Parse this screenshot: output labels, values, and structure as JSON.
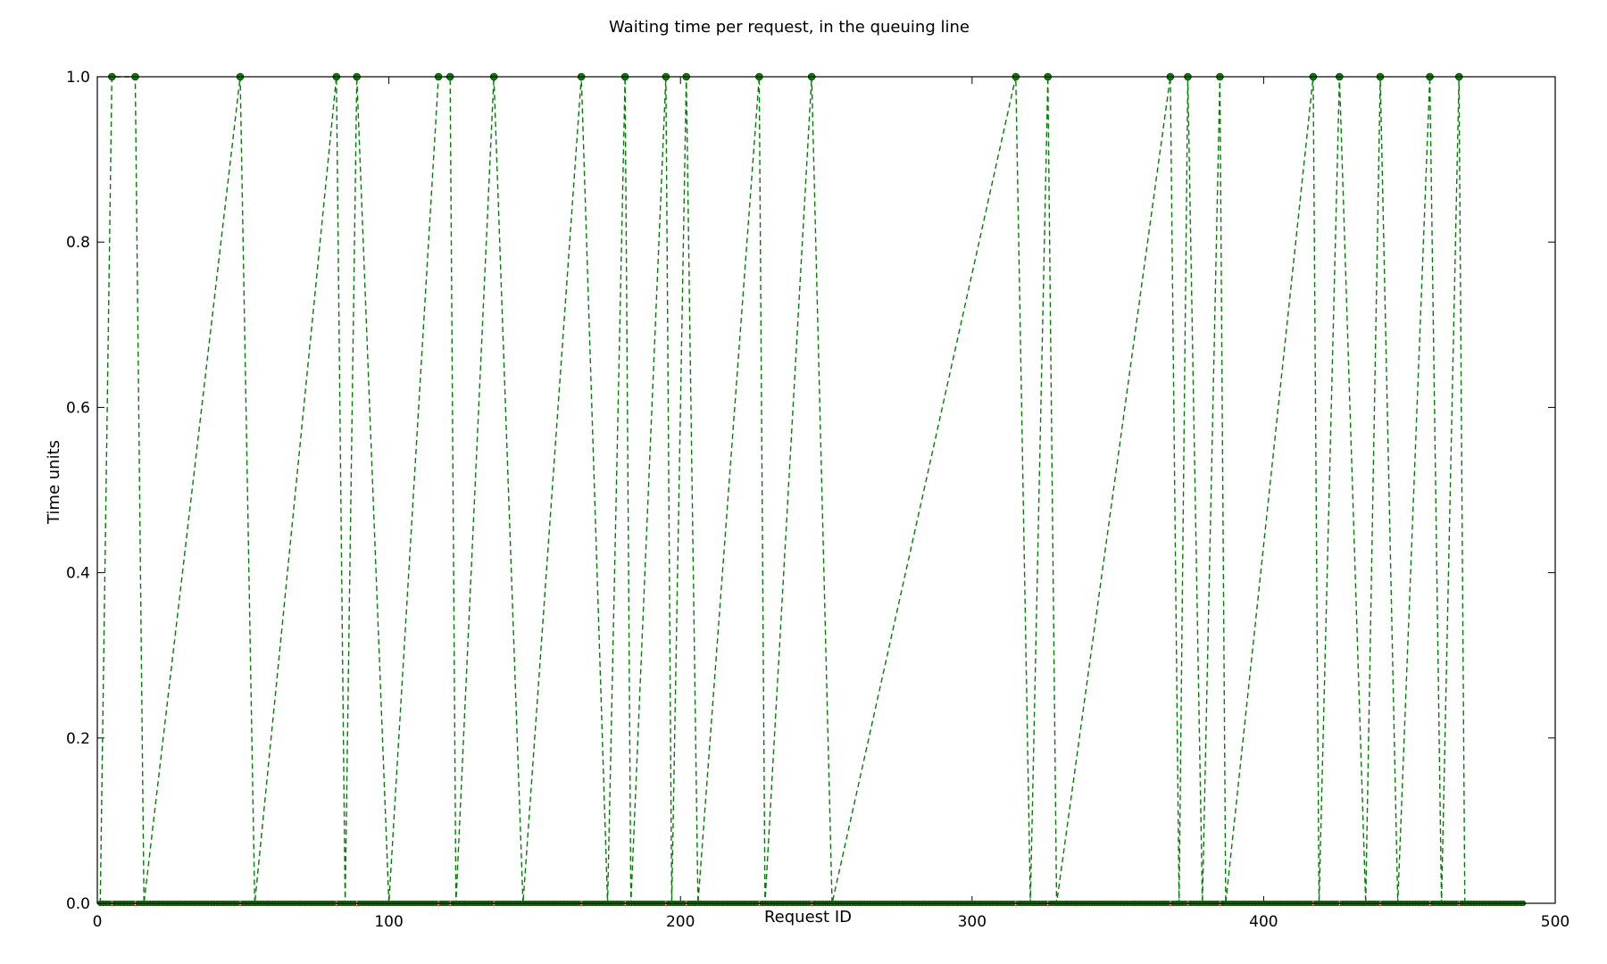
{
  "chart_data": {
    "type": "line",
    "title": "Waiting time per request, in the queuing line",
    "xlabel": "Request ID",
    "ylabel": "Time units",
    "xlim": [
      0,
      500
    ],
    "ylim": [
      0.0,
      1.0
    ],
    "x_ticks": [
      0,
      100,
      200,
      300,
      400,
      500
    ],
    "y_ticks": [
      0.0,
      0.2,
      0.4,
      0.6,
      0.8,
      1.0
    ],
    "x_tick_labels": [
      "0",
      "100",
      "200",
      "300",
      "400",
      "500"
    ],
    "y_tick_labels": [
      "0.0",
      "0.2",
      "0.4",
      "0.6",
      "0.8",
      "1.0"
    ],
    "grid": false,
    "legend": "none",
    "x_range": [
      1,
      489
    ],
    "series": [
      {
        "color": "#008000",
        "line_style": "dashed",
        "marker": "filled-circle",
        "values_note_free": true,
        "points": [
          [
            1,
            0
          ],
          [
            5,
            1
          ],
          [
            13,
            1
          ],
          [
            16,
            0
          ],
          [
            49,
            1
          ],
          [
            54,
            0
          ],
          [
            82,
            1
          ],
          [
            85,
            0
          ],
          [
            89,
            1
          ],
          [
            100,
            0
          ],
          [
            117,
            1
          ],
          [
            121,
            1
          ],
          [
            123,
            0
          ],
          [
            136,
            1
          ],
          [
            146,
            0
          ],
          [
            166,
            1
          ],
          [
            175,
            0
          ],
          [
            181,
            1
          ],
          [
            183,
            0
          ],
          [
            195,
            1
          ],
          [
            197,
            0
          ],
          [
            202,
            1
          ],
          [
            206,
            0
          ],
          [
            227,
            1
          ],
          [
            229,
            0
          ],
          [
            245,
            1
          ],
          [
            252,
            0
          ],
          [
            315,
            1
          ],
          [
            320,
            0
          ],
          [
            326,
            1
          ],
          [
            329,
            0
          ],
          [
            368,
            1
          ],
          [
            371,
            0
          ],
          [
            374,
            1
          ],
          [
            379,
            0
          ],
          [
            385,
            1
          ],
          [
            387,
            0
          ],
          [
            417,
            1
          ],
          [
            419,
            0
          ],
          [
            426,
            1
          ],
          [
            435,
            0
          ],
          [
            440,
            1
          ],
          [
            446,
            0
          ],
          [
            457,
            1
          ],
          [
            461,
            0
          ],
          [
            467,
            1
          ],
          [
            469,
            0
          ],
          [
            489,
            0
          ]
        ]
      },
      {
        "color": "#ff0000",
        "line_style": "none",
        "marker": "open-circle",
        "points": [
          [
            1,
            0
          ],
          [
            489,
            0
          ]
        ]
      }
    ]
  }
}
